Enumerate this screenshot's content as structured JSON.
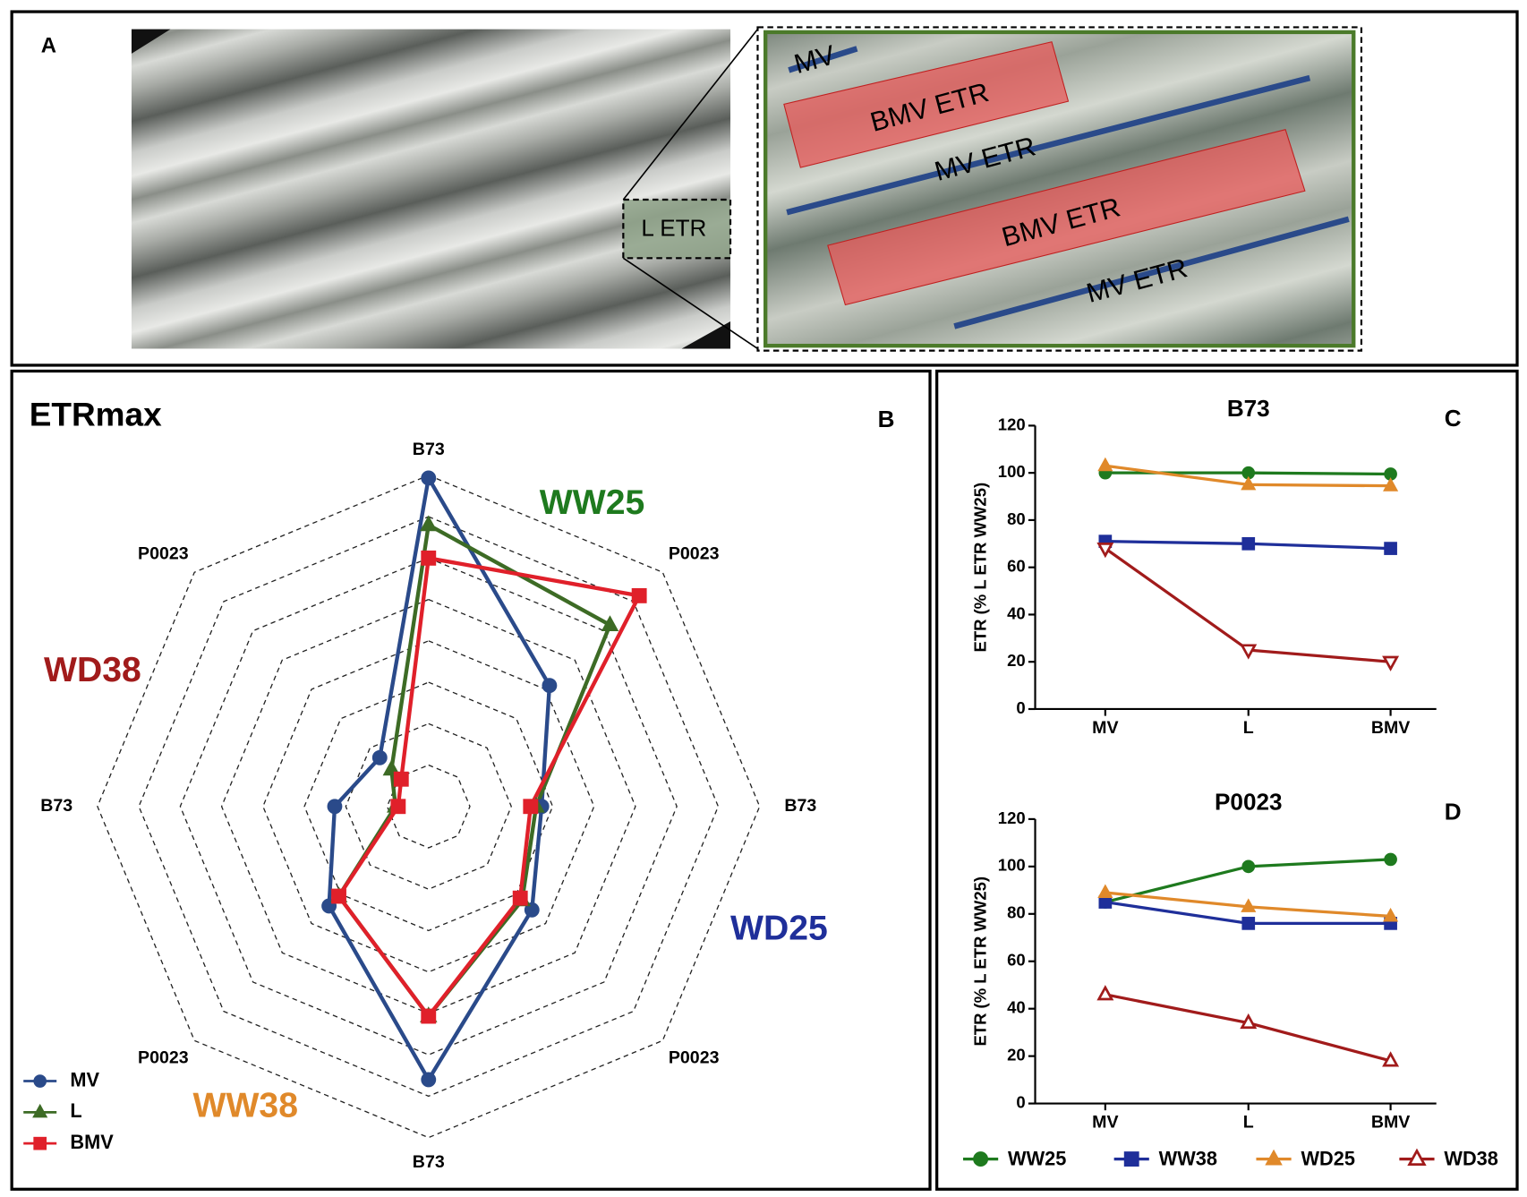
{
  "panel_a": {
    "label": "A",
    "inset_label": "L ETR",
    "annotations": [
      "MV",
      "BMV ETR",
      "MV ETR",
      "BMV ETR",
      "MV ETR"
    ]
  },
  "chart_data": [
    {
      "type": "radar",
      "panel_label": "B",
      "title": "ETRmax",
      "axes": [
        "B73",
        "P0023",
        "B73",
        "P0023",
        "B73",
        "P0023",
        "B73",
        "P0023"
      ],
      "group_labels": [
        {
          "text": "WW25",
          "color": "#1e7a1e"
        },
        {
          "text": "WD25",
          "color": "#1f2f9a"
        },
        {
          "text": "WW38",
          "color": "#e0892a"
        },
        {
          "text": "WD38",
          "color": "#a11b1b"
        }
      ],
      "rlim": [
        0,
        120
      ],
      "rticks": [
        15,
        30,
        45,
        60,
        75,
        90,
        105,
        120
      ],
      "series": [
        {
          "name": "MV",
          "color": "#2a4a8a",
          "marker": "circle",
          "values": [
            119,
            62,
            41,
            53,
            99,
            51,
            34,
            25
          ]
        },
        {
          "name": "L",
          "color": "#3d6b25",
          "marker": "triangle-up",
          "values": [
            102,
            93,
            39,
            48,
            76,
            46,
            12,
            19
          ]
        },
        {
          "name": "BMV",
          "color": "#e0202a",
          "marker": "square",
          "values": [
            90,
            108,
            37,
            47,
            76,
            46,
            11,
            14
          ]
        }
      ]
    },
    {
      "type": "line",
      "panel_label": "C",
      "title": "B73",
      "y_label": "ETR (% L ETR WW25)",
      "categories": [
        "MV",
        "L",
        "BMV"
      ],
      "ylim": [
        0,
        120
      ],
      "yticks": [
        0,
        20,
        40,
        60,
        80,
        100,
        120
      ],
      "series": [
        {
          "name": "WW25",
          "color": "#1e7a1e",
          "marker": "circle",
          "values": [
            100,
            100,
            99.5
          ]
        },
        {
          "name": "WW38",
          "color": "#1f2f9a",
          "marker": "square",
          "values": [
            71,
            70,
            68
          ]
        },
        {
          "name": "WD25",
          "color": "#e0892a",
          "marker": "triangle-up",
          "values": [
            103,
            95,
            94.5
          ]
        },
        {
          "name": "WD38",
          "color": "#a11b1b",
          "marker": "triangle-down-open",
          "values": [
            68,
            25,
            20
          ]
        }
      ]
    },
    {
      "type": "line",
      "panel_label": "D",
      "title": "P0023",
      "y_label": "ETR (% L ETR WW25)",
      "categories": [
        "MV",
        "L",
        "BMV"
      ],
      "ylim": [
        0,
        120
      ],
      "yticks": [
        0,
        20,
        40,
        60,
        80,
        100,
        120
      ],
      "series": [
        {
          "name": "WW25",
          "color": "#1e7a1e",
          "marker": "circle",
          "values": [
            85,
            100,
            103
          ]
        },
        {
          "name": "WW38",
          "color": "#1f2f9a",
          "marker": "square",
          "values": [
            85,
            76,
            76
          ]
        },
        {
          "name": "WD25",
          "color": "#e0892a",
          "marker": "triangle-up",
          "values": [
            89,
            83,
            79
          ]
        },
        {
          "name": "WD38",
          "color": "#a11b1b",
          "marker": "triangle-up-open",
          "values": [
            46,
            34,
            18
          ]
        }
      ]
    }
  ]
}
